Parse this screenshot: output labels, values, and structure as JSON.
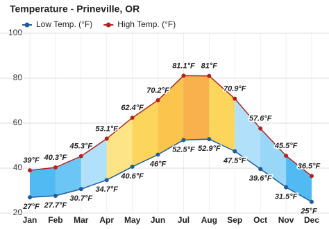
{
  "chart_data": {
    "type": "line",
    "title": "Temperature - Prineville, OR",
    "categories": [
      "Jan",
      "Feb",
      "Mar",
      "Apr",
      "May",
      "Jun",
      "Jul",
      "Aug",
      "Sep",
      "Oct",
      "Nov",
      "Dec"
    ],
    "series": [
      {
        "name": "Low Temp. (°F)",
        "color": "#1f5c99",
        "values": [
          27,
          27.7,
          30.7,
          34.7,
          40.6,
          46,
          52.5,
          52.9,
          47.5,
          39.6,
          31.5,
          25
        ],
        "value_labels": [
          "27°F",
          "27.7°F",
          "30.7°F",
          "34.7°F",
          "40.6°F",
          "46°F",
          "52.5°F",
          "52.9°F",
          "47.5°F",
          "39.6°F",
          "31.5°F",
          "25°F"
        ]
      },
      {
        "name": "High Temp. (°F)",
        "color": "#b22222",
        "values": [
          39,
          40.3,
          45.3,
          53.1,
          62.4,
          70.2,
          81.1,
          81,
          70.9,
          57.6,
          45.5,
          36.5
        ],
        "value_labels": [
          "39°F",
          "40.3°F",
          "45.3°F",
          "53.1°F",
          "62.4°F",
          "70.2°F",
          "81.1°F",
          "81°F",
          "70.9°F",
          "57.6°F",
          "45.5°F",
          "36.5°F"
        ]
      }
    ],
    "fill_colors": [
      "#3fb2f2",
      "#5cc0f4",
      "#a8def9",
      "#fde27a",
      "#fcd24a",
      "#fbbf3a",
      "#f7a83a",
      "#fcd24a",
      "#a8def9",
      "#8ed3f7",
      "#3fb2f2"
    ],
    "ylim": [
      20,
      100
    ],
    "yticks": [
      20,
      40,
      60,
      80,
      100
    ],
    "grid": true
  }
}
